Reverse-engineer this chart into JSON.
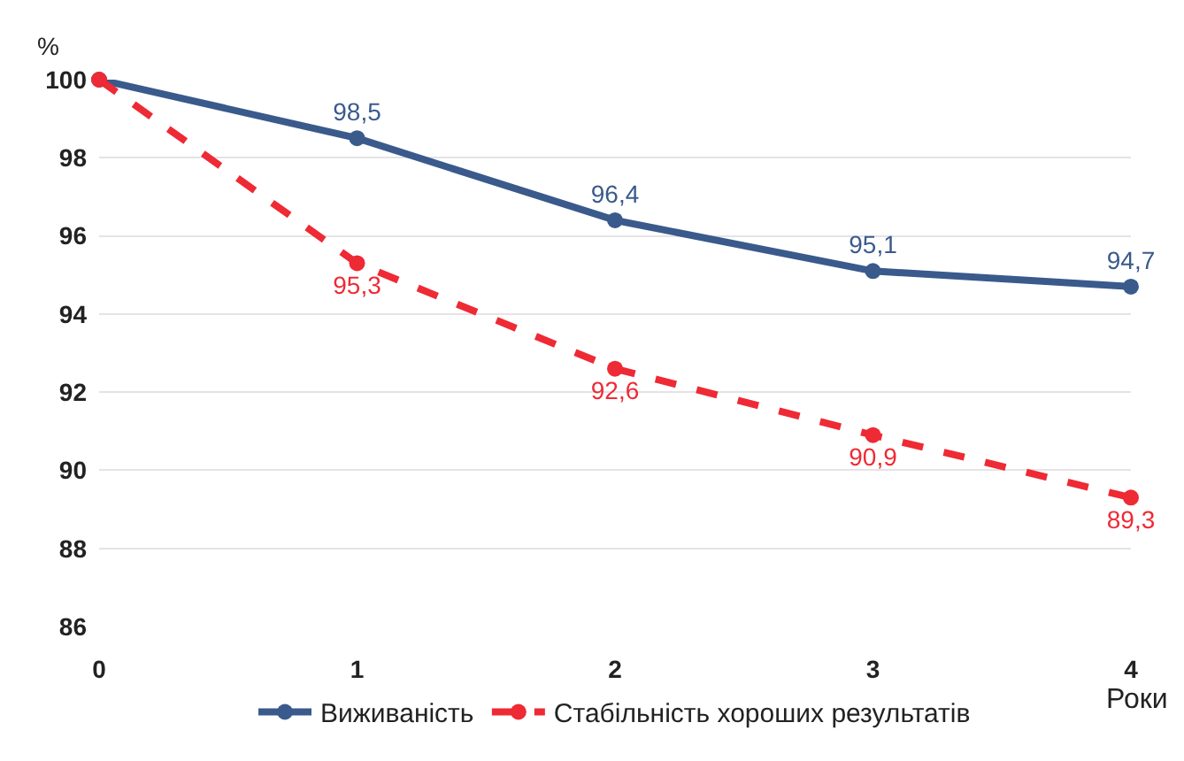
{
  "chart_data": {
    "type": "line",
    "x": [
      0,
      1,
      2,
      3,
      4
    ],
    "xlim": [
      0,
      4
    ],
    "xticks": [
      0,
      1,
      2,
      3,
      4
    ],
    "ylim": [
      86,
      100
    ],
    "yticks": [
      86,
      88,
      90,
      92,
      94,
      96,
      98,
      100
    ],
    "ylabel": "%",
    "xlabel": "Роки",
    "grid": "y",
    "legend": "bottom",
    "marker": "circle",
    "series": [
      {
        "name": "Виживаність",
        "color": "#3a5a8c",
        "line_style": "solid",
        "values": [
          100,
          98.5,
          96.4,
          95.1,
          94.7
        ],
        "value_labels": [
          null,
          "98,5",
          "96,4",
          "95,1",
          "94,7"
        ]
      },
      {
        "name": "Стабільність хороших результатів",
        "color": "#ee2a35",
        "line_style": "dashed",
        "values": [
          100,
          95.3,
          92.6,
          90.9,
          89.3
        ],
        "value_labels": [
          null,
          "95,3",
          "92,6",
          "90,9",
          "89,3"
        ]
      }
    ]
  }
}
